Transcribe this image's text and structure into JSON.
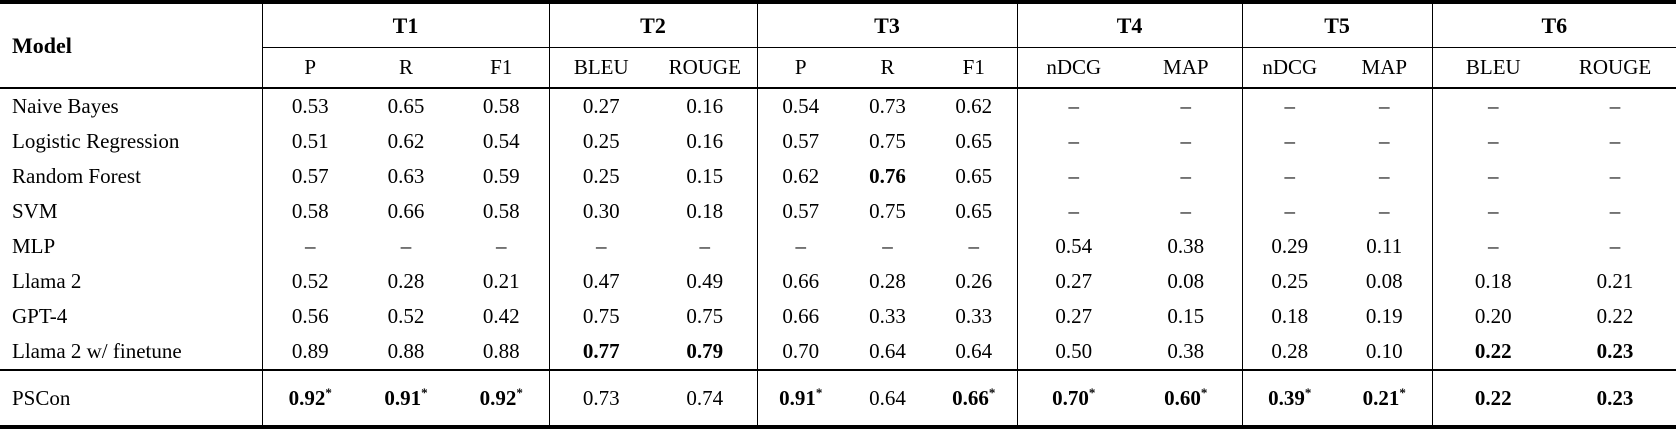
{
  "table": {
    "model_header": "Model",
    "groups": [
      {
        "label": "T1",
        "sub": [
          "P",
          "R",
          "F1"
        ]
      },
      {
        "label": "T2",
        "sub": [
          "BLEU",
          "ROUGE"
        ]
      },
      {
        "label": "T3",
        "sub": [
          "P",
          "R",
          "F1"
        ]
      },
      {
        "label": "T4",
        "sub": [
          "nDCG",
          "MAP"
        ]
      },
      {
        "label": "T5",
        "sub": [
          "nDCG",
          "MAP"
        ]
      },
      {
        "label": "T6",
        "sub": [
          "BLEU",
          "ROUGE"
        ]
      }
    ],
    "rows": [
      {
        "model": "Naive Bayes",
        "cells": [
          {
            "v": "0.53"
          },
          {
            "v": "0.65"
          },
          {
            "v": "0.58"
          },
          {
            "v": "0.27"
          },
          {
            "v": "0.16"
          },
          {
            "v": "0.54"
          },
          {
            "v": "0.73"
          },
          {
            "v": "0.62"
          },
          {
            "v": "–"
          },
          {
            "v": "–"
          },
          {
            "v": "–"
          },
          {
            "v": "–"
          },
          {
            "v": "–"
          },
          {
            "v": "–"
          }
        ]
      },
      {
        "model": "Logistic Regression",
        "cells": [
          {
            "v": "0.51"
          },
          {
            "v": "0.62"
          },
          {
            "v": "0.54"
          },
          {
            "v": "0.25"
          },
          {
            "v": "0.16"
          },
          {
            "v": "0.57"
          },
          {
            "v": "0.75"
          },
          {
            "v": "0.65"
          },
          {
            "v": "–"
          },
          {
            "v": "–"
          },
          {
            "v": "–"
          },
          {
            "v": "–"
          },
          {
            "v": "–"
          },
          {
            "v": "–"
          }
        ]
      },
      {
        "model": "Random Forest",
        "cells": [
          {
            "v": "0.57"
          },
          {
            "v": "0.63"
          },
          {
            "v": "0.59"
          },
          {
            "v": "0.25"
          },
          {
            "v": "0.15"
          },
          {
            "v": "0.62"
          },
          {
            "v": "0.76",
            "b": true
          },
          {
            "v": "0.65"
          },
          {
            "v": "–"
          },
          {
            "v": "–"
          },
          {
            "v": "–"
          },
          {
            "v": "–"
          },
          {
            "v": "–"
          },
          {
            "v": "–"
          }
        ]
      },
      {
        "model": "SVM",
        "cells": [
          {
            "v": "0.58"
          },
          {
            "v": "0.66"
          },
          {
            "v": "0.58"
          },
          {
            "v": "0.30"
          },
          {
            "v": "0.18"
          },
          {
            "v": "0.57"
          },
          {
            "v": "0.75"
          },
          {
            "v": "0.65"
          },
          {
            "v": "–"
          },
          {
            "v": "–"
          },
          {
            "v": "–"
          },
          {
            "v": "–"
          },
          {
            "v": "–"
          },
          {
            "v": "–"
          }
        ]
      },
      {
        "model": "MLP",
        "cells": [
          {
            "v": "–"
          },
          {
            "v": "–"
          },
          {
            "v": "–"
          },
          {
            "v": "–"
          },
          {
            "v": "–"
          },
          {
            "v": "–"
          },
          {
            "v": "–"
          },
          {
            "v": "–"
          },
          {
            "v": "0.54"
          },
          {
            "v": "0.38"
          },
          {
            "v": "0.29"
          },
          {
            "v": "0.11"
          },
          {
            "v": "–"
          },
          {
            "v": "–"
          }
        ]
      },
      {
        "model": "Llama 2",
        "cells": [
          {
            "v": "0.52"
          },
          {
            "v": "0.28"
          },
          {
            "v": "0.21"
          },
          {
            "v": "0.47"
          },
          {
            "v": "0.49"
          },
          {
            "v": "0.66"
          },
          {
            "v": "0.28"
          },
          {
            "v": "0.26"
          },
          {
            "v": "0.27"
          },
          {
            "v": "0.08"
          },
          {
            "v": "0.25"
          },
          {
            "v": "0.08"
          },
          {
            "v": "0.18"
          },
          {
            "v": "0.21"
          }
        ]
      },
      {
        "model": "GPT-4",
        "cells": [
          {
            "v": "0.56"
          },
          {
            "v": "0.52"
          },
          {
            "v": "0.42"
          },
          {
            "v": "0.75"
          },
          {
            "v": "0.75"
          },
          {
            "v": "0.66"
          },
          {
            "v": "0.33"
          },
          {
            "v": "0.33"
          },
          {
            "v": "0.27"
          },
          {
            "v": "0.15"
          },
          {
            "v": "0.18"
          },
          {
            "v": "0.19"
          },
          {
            "v": "0.20"
          },
          {
            "v": "0.22"
          }
        ]
      },
      {
        "model": "Llama 2 w/ finetune",
        "cells": [
          {
            "v": "0.89"
          },
          {
            "v": "0.88"
          },
          {
            "v": "0.88"
          },
          {
            "v": "0.77",
            "b": true
          },
          {
            "v": "0.79",
            "b": true
          },
          {
            "v": "0.70"
          },
          {
            "v": "0.64"
          },
          {
            "v": "0.64"
          },
          {
            "v": "0.50"
          },
          {
            "v": "0.38"
          },
          {
            "v": "0.28"
          },
          {
            "v": "0.10"
          },
          {
            "v": "0.22",
            "b": true
          },
          {
            "v": "0.23",
            "b": true
          }
        ]
      }
    ],
    "final_row": {
      "model": "PSCon",
      "cells": [
        {
          "v": "0.92",
          "b": true,
          "s": true
        },
        {
          "v": "0.91",
          "b": true,
          "s": true
        },
        {
          "v": "0.92",
          "b": true,
          "s": true
        },
        {
          "v": "0.73"
        },
        {
          "v": "0.74"
        },
        {
          "v": "0.91",
          "b": true,
          "s": true
        },
        {
          "v": "0.64"
        },
        {
          "v": "0.66",
          "b": true,
          "s": true
        },
        {
          "v": "0.70",
          "b": true,
          "s": true
        },
        {
          "v": "0.60",
          "b": true,
          "s": true
        },
        {
          "v": "0.39",
          "b": true,
          "s": true
        },
        {
          "v": "0.21",
          "b": true,
          "s": true
        },
        {
          "v": "0.22",
          "b": true
        },
        {
          "v": "0.23",
          "b": true
        }
      ]
    },
    "dash_char": "–",
    "star_char": "*",
    "text_color": "#000000",
    "background_color": "#ffffff"
  }
}
